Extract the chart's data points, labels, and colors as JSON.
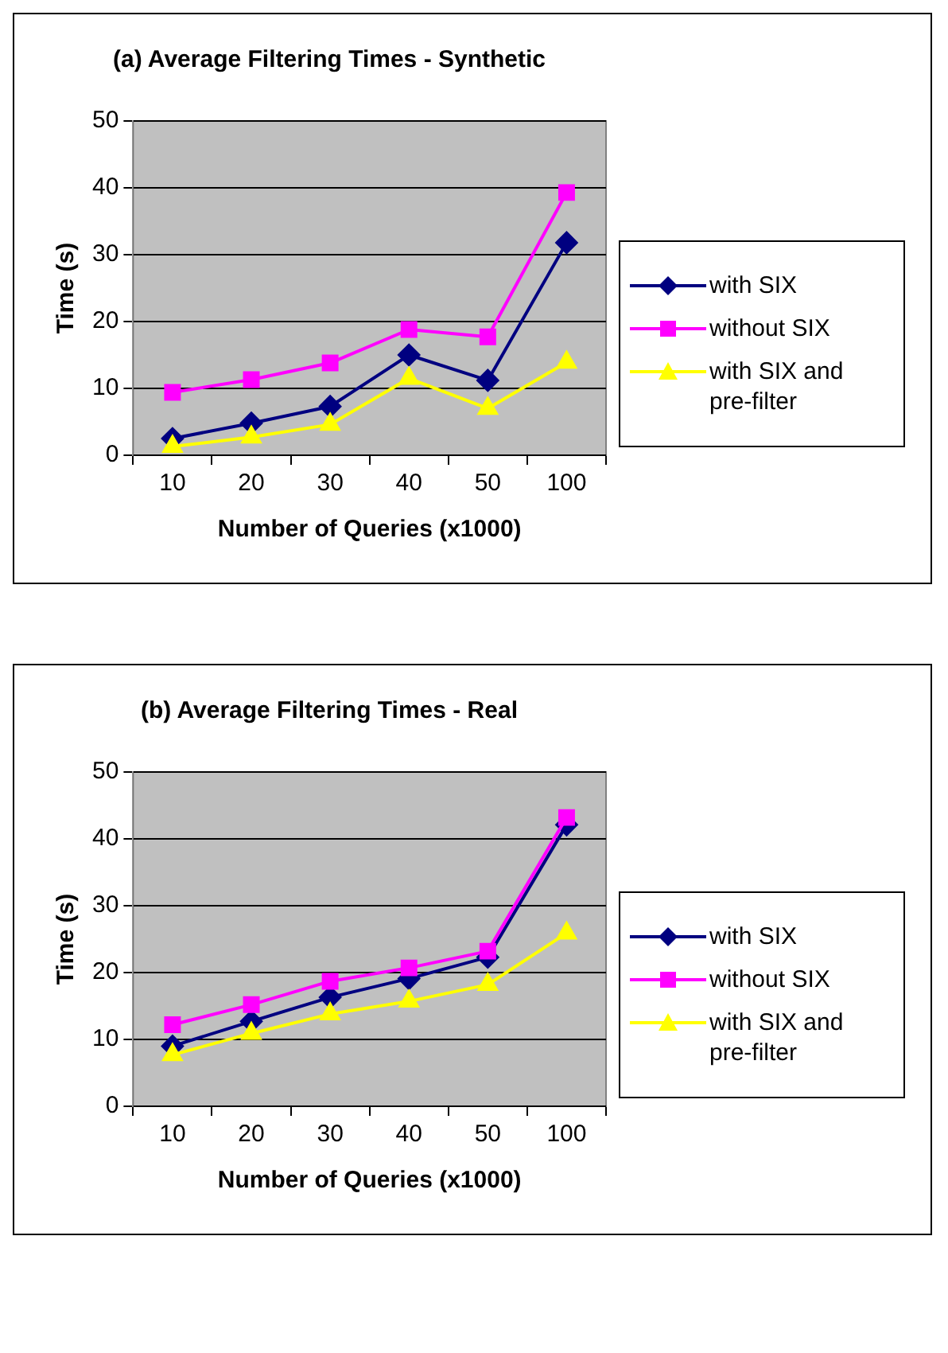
{
  "chart_data": [
    {
      "type": "line",
      "title": "(a) Average Filtering Times - Synthetic",
      "xlabel": "Number of Queries (x1000)",
      "ylabel": "Time (s)",
      "categories": [
        "10",
        "20",
        "30",
        "40",
        "50",
        "100"
      ],
      "ylim": [
        0,
        50
      ],
      "yticks": [
        0,
        10,
        20,
        30,
        40,
        50
      ],
      "grid": "y",
      "legend": "right",
      "series": [
        {
          "name": "with SIX",
          "color": "#000080",
          "marker": "diamond",
          "values": [
            2.5,
            4.8,
            7.3,
            15,
            11.2,
            31.8
          ]
        },
        {
          "name": "without SIX",
          "color": "#ff00ff",
          "marker": "square",
          "values": [
            9.4,
            11.3,
            13.8,
            18.8,
            17.7,
            39.3
          ]
        },
        {
          "name": "with SIX and pre-filter",
          "color": "#ffff00",
          "marker": "triangle",
          "values": [
            1.3,
            2.7,
            4.6,
            11.5,
            7,
            13.9
          ]
        }
      ]
    },
    {
      "type": "line",
      "title": "(b) Average Filtering Times - Real",
      "xlabel": "Number of Queries (x1000)",
      "ylabel": "Time (s)",
      "categories": [
        "10",
        "20",
        "30",
        "40",
        "50",
        "100"
      ],
      "ylim": [
        0,
        50
      ],
      "yticks": [
        0,
        10,
        20,
        30,
        40,
        50
      ],
      "grid": "y",
      "legend": "right",
      "series": [
        {
          "name": "with SIX",
          "color": "#000080",
          "marker": "diamond",
          "values": [
            9,
            12.7,
            16.3,
            19.1,
            22.3,
            42.1
          ]
        },
        {
          "name": "without SIX",
          "color": "#ff00ff",
          "marker": "square",
          "values": [
            12.2,
            15.2,
            18.7,
            20.7,
            23.2,
            43.2
          ]
        },
        {
          "name": "with SIX and pre-filter",
          "color": "#ffff00",
          "marker": "triangle",
          "values": [
            7.7,
            10.9,
            13.8,
            15.7,
            18.2,
            25.9
          ]
        }
      ]
    }
  ]
}
